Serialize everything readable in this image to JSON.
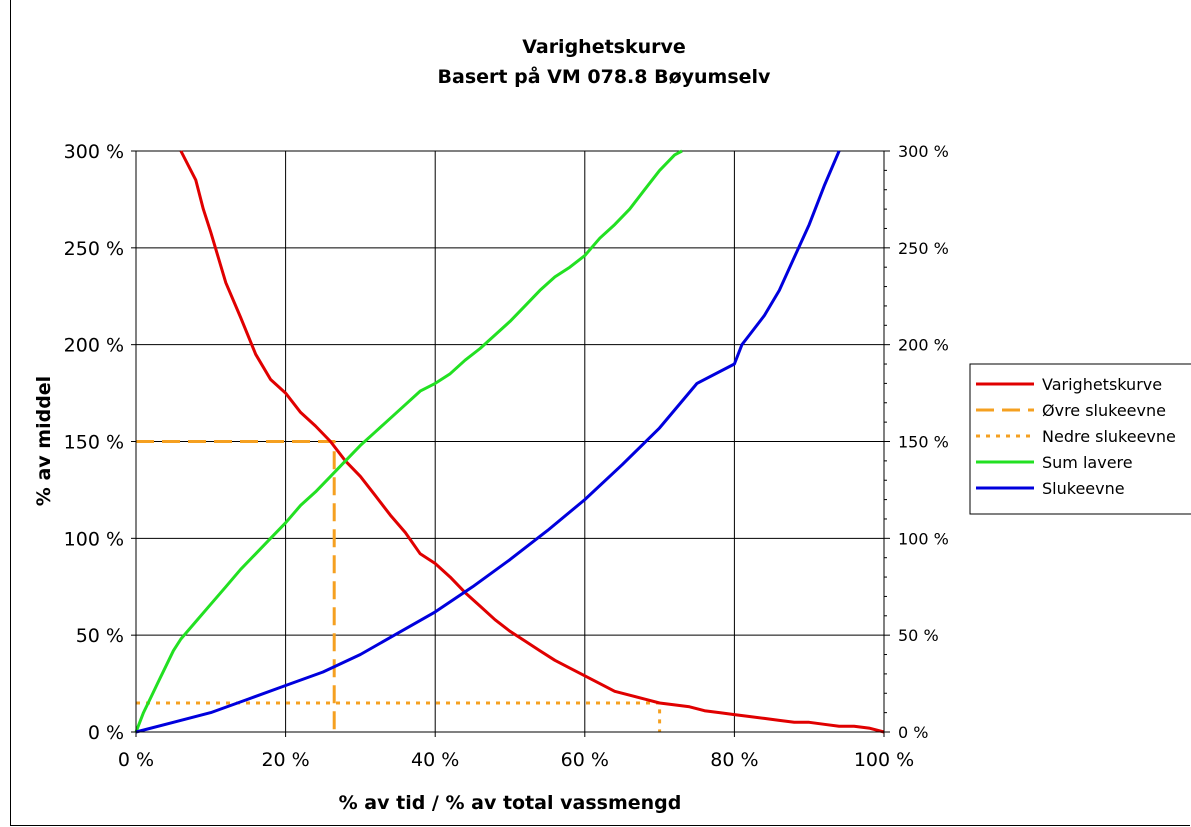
{
  "chart_data": {
    "type": "line",
    "title": "Varighetskurve",
    "subtitle": "Basert på VM 078.8 Bøyumselv",
    "xlabel": "% av tid / % av total vassmengd",
    "ylabel": "% av middel",
    "xlim": [
      0,
      100
    ],
    "ylim": [
      0,
      300
    ],
    "x_ticks": [
      "0 %",
      "20 %",
      "40 %",
      "60 %",
      "80 %",
      "100 %"
    ],
    "y_ticks_left": [
      "0 %",
      "50 %",
      "100 %",
      "150 %",
      "200 %",
      "250 %",
      "300 %"
    ],
    "y_ticks_right": [
      "0 %",
      "50 %",
      "100 %",
      "150 %",
      "200 %",
      "250 %",
      "300 %"
    ],
    "grid": true,
    "legend_position": "right",
    "series": [
      {
        "name": "Varighetskurve",
        "color": "#e00000",
        "style": "solid",
        "points": [
          [
            6,
            300
          ],
          [
            8,
            285
          ],
          [
            9,
            270
          ],
          [
            10,
            258
          ],
          [
            11,
            245
          ],
          [
            12,
            232
          ],
          [
            14,
            214
          ],
          [
            16,
            195
          ],
          [
            18,
            182
          ],
          [
            20,
            175
          ],
          [
            22,
            165
          ],
          [
            24,
            158
          ],
          [
            26,
            150
          ],
          [
            28,
            140
          ],
          [
            30,
            132
          ],
          [
            32,
            122
          ],
          [
            34,
            112
          ],
          [
            36,
            103
          ],
          [
            38,
            92
          ],
          [
            40,
            87
          ],
          [
            42,
            80
          ],
          [
            44,
            72
          ],
          [
            46,
            65
          ],
          [
            48,
            58
          ],
          [
            50,
            52
          ],
          [
            52,
            47
          ],
          [
            54,
            42
          ],
          [
            56,
            37
          ],
          [
            58,
            33
          ],
          [
            60,
            29
          ],
          [
            62,
            25
          ],
          [
            64,
            21
          ],
          [
            66,
            19
          ],
          [
            68,
            17
          ],
          [
            70,
            15
          ],
          [
            72,
            14
          ],
          [
            74,
            13
          ],
          [
            76,
            11
          ],
          [
            78,
            10
          ],
          [
            80,
            9
          ],
          [
            82,
            8
          ],
          [
            84,
            7
          ],
          [
            86,
            6
          ],
          [
            88,
            5
          ],
          [
            90,
            5
          ],
          [
            92,
            4
          ],
          [
            94,
            3
          ],
          [
            96,
            3
          ],
          [
            98,
            2
          ],
          [
            100,
            0
          ]
        ]
      },
      {
        "name": "Øvre slukeevne",
        "color": "#f5a020",
        "style": "dashed",
        "points": [
          [
            0,
            150
          ],
          [
            26.5,
            150
          ],
          [
            26.5,
            0
          ]
        ]
      },
      {
        "name": "Nedre slukeevne",
        "color": "#f5a020",
        "style": "dotted",
        "points": [
          [
            0,
            15
          ],
          [
            70,
            15
          ],
          [
            70,
            0
          ]
        ]
      },
      {
        "name": "Sum lavere",
        "color": "#22e022",
        "style": "solid",
        "points": [
          [
            0,
            0
          ],
          [
            1,
            10
          ],
          [
            2,
            18
          ],
          [
            3,
            26
          ],
          [
            4,
            34
          ],
          [
            5,
            42
          ],
          [
            6,
            48
          ],
          [
            8,
            57
          ],
          [
            10,
            66
          ],
          [
            12,
            75
          ],
          [
            14,
            84
          ],
          [
            16,
            92
          ],
          [
            18,
            100
          ],
          [
            20,
            108
          ],
          [
            22,
            117
          ],
          [
            24,
            124
          ],
          [
            26,
            132
          ],
          [
            28,
            140
          ],
          [
            30,
            148
          ],
          [
            32,
            155
          ],
          [
            34,
            162
          ],
          [
            36,
            169
          ],
          [
            38,
            176
          ],
          [
            40,
            180
          ],
          [
            42,
            185
          ],
          [
            44,
            192
          ],
          [
            46,
            198
          ],
          [
            48,
            205
          ],
          [
            50,
            212
          ],
          [
            52,
            220
          ],
          [
            54,
            228
          ],
          [
            56,
            235
          ],
          [
            58,
            240
          ],
          [
            60,
            246
          ],
          [
            62,
            255
          ],
          [
            64,
            262
          ],
          [
            66,
            270
          ],
          [
            68,
            280
          ],
          [
            70,
            290
          ],
          [
            72,
            298
          ],
          [
            73,
            300
          ]
        ]
      },
      {
        "name": "Slukeevne",
        "color": "#0000dd",
        "style": "solid",
        "points": [
          [
            0,
            0
          ],
          [
            5,
            5
          ],
          [
            10,
            10
          ],
          [
            15,
            17
          ],
          [
            20,
            24
          ],
          [
            25,
            31
          ],
          [
            30,
            40
          ],
          [
            35,
            51
          ],
          [
            40,
            62
          ],
          [
            45,
            75
          ],
          [
            50,
            89
          ],
          [
            55,
            104
          ],
          [
            60,
            120
          ],
          [
            65,
            138
          ],
          [
            70,
            157
          ],
          [
            75,
            180
          ],
          [
            80,
            190
          ],
          [
            81,
            200
          ],
          [
            82,
            205
          ],
          [
            84,
            215
          ],
          [
            86,
            228
          ],
          [
            88,
            245
          ],
          [
            90,
            262
          ],
          [
            92,
            282
          ],
          [
            94,
            300
          ]
        ]
      }
    ]
  }
}
